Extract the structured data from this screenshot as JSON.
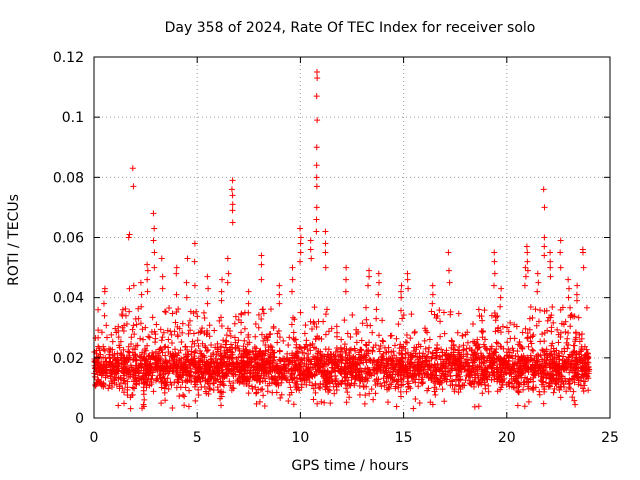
{
  "chart_data": {
    "type": "scatter",
    "title": "Day 358 of 2024, Rate Of TEC Index for receiver solo",
    "xlabel": "GPS time / hours",
    "ylabel": "ROTI / TECUs",
    "xlim": [
      0,
      25
    ],
    "ylim": [
      0,
      0.12
    ],
    "x_ticks": [
      0,
      5,
      10,
      15,
      20,
      25
    ],
    "x_tick_labels": [
      "0",
      "5",
      "10",
      "15",
      "20",
      "25"
    ],
    "y_ticks": [
      0,
      0.02,
      0.04,
      0.06,
      0.08,
      0.1,
      0.12
    ],
    "y_tick_labels": [
      "0",
      "0.02",
      "0.04",
      "0.06",
      "0.08",
      "0.1",
      "0.12"
    ],
    "grid": true,
    "marker": "+",
    "series_color": "#ff0000",
    "data_extent_hours": [
      0,
      24
    ],
    "baseline_band": [
      0.008,
      0.025
    ],
    "spikes": [
      {
        "x": 0.5,
        "values": [
          0.043,
          0.042,
          0.038,
          0.034
        ]
      },
      {
        "x": 1.4,
        "values": [
          0.036,
          0.034,
          0.03
        ]
      },
      {
        "x": 1.7,
        "values": [
          0.061,
          0.06,
          0.043
        ]
      },
      {
        "x": 1.9,
        "values": [
          0.083,
          0.077,
          0.044
        ]
      },
      {
        "x": 2.3,
        "values": [
          0.045,
          0.041,
          0.037
        ]
      },
      {
        "x": 2.6,
        "values": [
          0.051,
          0.049,
          0.046,
          0.042
        ]
      },
      {
        "x": 2.9,
        "values": [
          0.068,
          0.063,
          0.059,
          0.055,
          0.05
        ]
      },
      {
        "x": 3.3,
        "values": [
          0.053,
          0.047,
          0.043
        ]
      },
      {
        "x": 4.0,
        "values": [
          0.05,
          0.048,
          0.041
        ]
      },
      {
        "x": 4.5,
        "values": [
          0.053,
          0.045,
          0.04
        ]
      },
      {
        "x": 4.9,
        "values": [
          0.058,
          0.052,
          0.044
        ]
      },
      {
        "x": 5.5,
        "values": [
          0.047,
          0.043,
          0.038
        ]
      },
      {
        "x": 6.2,
        "values": [
          0.046,
          0.042,
          0.039
        ]
      },
      {
        "x": 6.5,
        "values": [
          0.053,
          0.048,
          0.045
        ]
      },
      {
        "x": 6.7,
        "values": [
          0.079,
          0.076,
          0.074,
          0.071,
          0.069,
          0.065
        ]
      },
      {
        "x": 7.5,
        "values": [
          0.042,
          0.038,
          0.035
        ]
      },
      {
        "x": 8.1,
        "values": [
          0.054,
          0.051,
          0.046
        ]
      },
      {
        "x": 9.0,
        "values": [
          0.044,
          0.041,
          0.038
        ]
      },
      {
        "x": 9.6,
        "values": [
          0.05,
          0.046,
          0.042
        ]
      },
      {
        "x": 10.0,
        "values": [
          0.063,
          0.06,
          0.058,
          0.055,
          0.052
        ]
      },
      {
        "x": 10.5,
        "values": [
          0.059,
          0.056,
          0.053
        ]
      },
      {
        "x": 10.8,
        "values": [
          0.115,
          0.113,
          0.107,
          0.099,
          0.09,
          0.084,
          0.08,
          0.077,
          0.07,
          0.066,
          0.062
        ]
      },
      {
        "x": 11.2,
        "values": [
          0.062,
          0.058,
          0.055,
          0.05
        ]
      },
      {
        "x": 12.2,
        "values": [
          0.05,
          0.046,
          0.042
        ]
      },
      {
        "x": 13.3,
        "values": [
          0.049,
          0.047,
          0.044
        ]
      },
      {
        "x": 13.8,
        "values": [
          0.048,
          0.045,
          0.041
        ]
      },
      {
        "x": 14.9,
        "values": [
          0.044,
          0.042,
          0.04
        ]
      },
      {
        "x": 15.2,
        "values": [
          0.048,
          0.046,
          0.043
        ]
      },
      {
        "x": 16.4,
        "values": [
          0.044,
          0.041,
          0.038
        ]
      },
      {
        "x": 17.2,
        "values": [
          0.055,
          0.049,
          0.045
        ]
      },
      {
        "x": 19.4,
        "values": [
          0.055,
          0.052,
          0.048,
          0.044
        ]
      },
      {
        "x": 19.7,
        "values": [
          0.043,
          0.04,
          0.037
        ]
      },
      {
        "x": 20.9,
        "values": [
          0.05,
          0.047,
          0.044
        ]
      },
      {
        "x": 21.0,
        "values": [
          0.057,
          0.055,
          0.052,
          0.049
        ]
      },
      {
        "x": 21.5,
        "values": [
          0.048,
          0.045,
          0.042
        ]
      },
      {
        "x": 21.8,
        "values": [
          0.076,
          0.07,
          0.06,
          0.057,
          0.054
        ]
      },
      {
        "x": 22.1,
        "values": [
          0.055,
          0.052,
          0.05,
          0.047
        ]
      },
      {
        "x": 22.6,
        "values": [
          0.059,
          0.055,
          0.05
        ]
      },
      {
        "x": 23.0,
        "values": [
          0.046,
          0.043,
          0.04
        ]
      },
      {
        "x": 23.4,
        "values": [
          0.044,
          0.041,
          0.039
        ]
      },
      {
        "x": 23.7,
        "values": [
          0.056,
          0.055,
          0.05
        ]
      }
    ]
  }
}
